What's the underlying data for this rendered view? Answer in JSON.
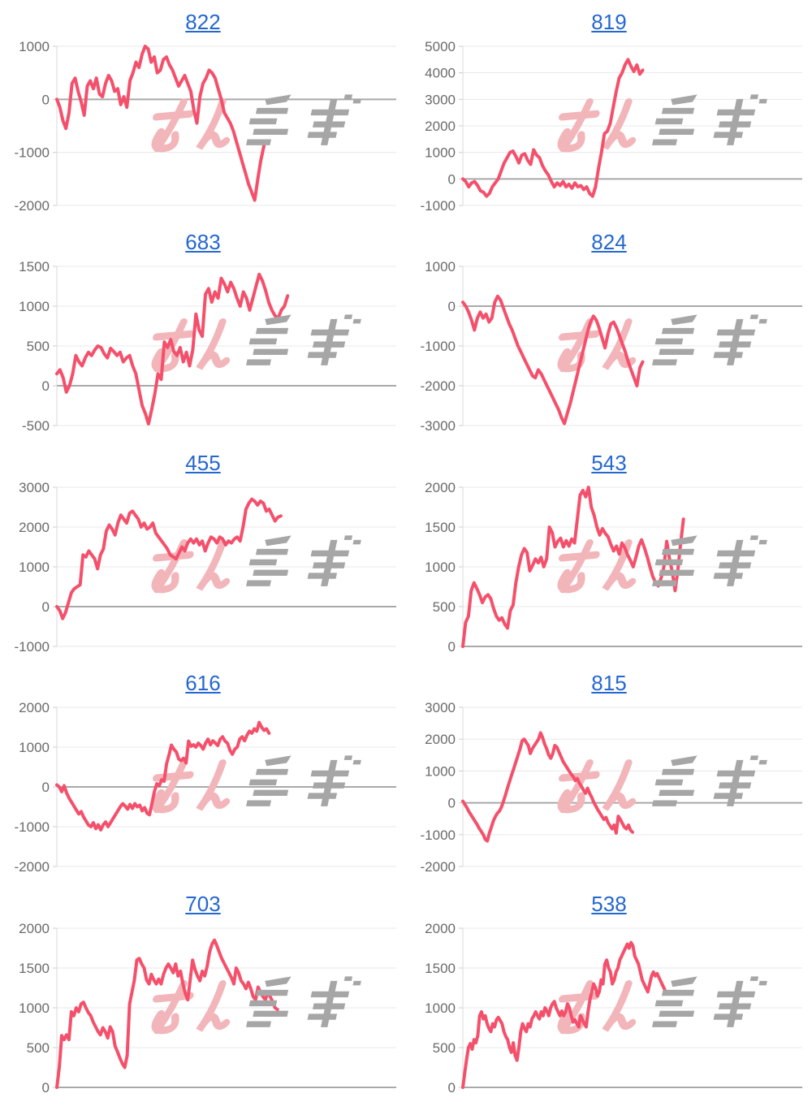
{
  "colors": {
    "line": "#f5506b",
    "link_blue": "#2467d0",
    "axis_text": "#6b6b6b",
    "grid": "#e8e8e8",
    "zero_line": "#a9a9a9",
    "axis_line": "#d9d9d9",
    "tick_mark": "#cccccc",
    "watermark_pink": "#f2b5ba",
    "watermark_gray": "#a6a6a6",
    "background": "#ffffff"
  },
  "watermark": {
    "pink_text": "みん",
    "gray_text": "レポ"
  },
  "chart_data": [
    {
      "type": "line",
      "title": "822",
      "xlabel": "",
      "ylabel": "",
      "legend": "none",
      "grid": true,
      "ylim": [
        -2000,
        1000
      ],
      "yticks": [
        1000,
        0,
        -1000,
        -2000
      ],
      "span": 0.61,
      "values": [
        0,
        -150,
        -400,
        -550,
        -250,
        300,
        400,
        150,
        -50,
        -300,
        250,
        350,
        200,
        400,
        100,
        50,
        300,
        450,
        350,
        150,
        200,
        -100,
        50,
        -150,
        350,
        500,
        700,
        600,
        850,
        1000,
        950,
        700,
        800,
        500,
        550,
        750,
        800,
        650,
        550,
        400,
        250,
        350,
        450,
        300,
        150,
        -200,
        -450,
        50,
        300,
        400,
        550,
        500,
        400,
        200,
        0,
        -250,
        -350,
        -450,
        -600,
        -800,
        -1000,
        -1200,
        -1400,
        -1600,
        -1750,
        -1900,
        -1500,
        -1150,
        -880
      ]
    },
    {
      "type": "line",
      "title": "819",
      "xlabel": "",
      "ylabel": "",
      "legend": "none",
      "grid": true,
      "ylim": [
        -1000,
        5000
      ],
      "yticks": [
        5000,
        4000,
        3000,
        2000,
        1000,
        0,
        -1000
      ],
      "span": 0.53,
      "values": [
        0,
        -100,
        -300,
        -150,
        -100,
        -250,
        -450,
        -500,
        -650,
        -550,
        -300,
        -150,
        0,
        300,
        600,
        800,
        1000,
        1050,
        850,
        600,
        900,
        950,
        700,
        550,
        1100,
        900,
        800,
        500,
        300,
        150,
        -100,
        -300,
        -150,
        -250,
        -100,
        -300,
        -200,
        -350,
        -150,
        -300,
        -250,
        -400,
        -300,
        -550,
        -650,
        -300,
        400,
        1000,
        1700,
        1800,
        2100,
        2700,
        3300,
        3800,
        4000,
        4300,
        4500,
        4250,
        4050,
        4300,
        3950,
        4100
      ]
    },
    {
      "type": "line",
      "title": "683",
      "xlabel": "",
      "ylabel": "",
      "legend": "none",
      "grid": true,
      "ylim": [
        -500,
        1500
      ],
      "yticks": [
        1500,
        1000,
        500,
        0,
        -500
      ],
      "span": 0.68,
      "values": [
        150,
        200,
        100,
        -80,
        0,
        150,
        380,
        300,
        250,
        350,
        420,
        380,
        450,
        500,
        480,
        400,
        350,
        470,
        430,
        380,
        420,
        300,
        350,
        380,
        250,
        150,
        -50,
        -250,
        -350,
        -480,
        -300,
        -100,
        150,
        80,
        550,
        480,
        580,
        430,
        380,
        480,
        300,
        420,
        250,
        450,
        900,
        700,
        620,
        1150,
        1220,
        1050,
        1180,
        1100,
        1350,
        1280,
        1180,
        1300,
        1220,
        1100,
        1000,
        1180,
        1100,
        950,
        1100,
        1250,
        1400,
        1320,
        1200,
        1050,
        950,
        880,
        850,
        950,
        1000,
        1130
      ]
    },
    {
      "type": "line",
      "title": "824",
      "xlabel": "",
      "ylabel": "",
      "legend": "none",
      "grid": true,
      "ylim": [
        -3000,
        1000
      ],
      "yticks": [
        1000,
        0,
        -1000,
        -2000,
        -3000
      ],
      "span": 0.53,
      "values": [
        100,
        0,
        -150,
        -350,
        -600,
        -300,
        -150,
        -300,
        -200,
        -400,
        -300,
        100,
        250,
        150,
        -50,
        -250,
        -450,
        -600,
        -800,
        -1000,
        -1150,
        -1300,
        -1450,
        -1600,
        -1750,
        -1800,
        -1600,
        -1700,
        -1850,
        -2000,
        -2150,
        -2300,
        -2450,
        -2600,
        -2800,
        -2950,
        -2700,
        -2450,
        -2150,
        -1850,
        -1550,
        -1250,
        -950,
        -650,
        -400,
        -250,
        -350,
        -550,
        -800,
        -1050,
        -700,
        -450,
        -400,
        -550,
        -750,
        -950,
        -1150,
        -1400,
        -1600,
        -1800,
        -2000,
        -1550,
        -1400
      ]
    },
    {
      "type": "line",
      "title": "455",
      "xlabel": "",
      "ylabel": "",
      "legend": "none",
      "grid": true,
      "ylim": [
        -1000,
        3000
      ],
      "yticks": [
        3000,
        2000,
        1000,
        0,
        -1000
      ],
      "span": 0.66,
      "values": [
        0,
        -100,
        -300,
        -150,
        100,
        350,
        450,
        500,
        550,
        1300,
        1250,
        1400,
        1300,
        1200,
        950,
        1300,
        1450,
        1900,
        2050,
        1950,
        1800,
        2100,
        2300,
        2200,
        2100,
        2350,
        2400,
        2300,
        2200,
        2000,
        2100,
        1950,
        2000,
        2100,
        1850,
        1750,
        1650,
        1550,
        1450,
        1300,
        1250,
        1200,
        1350,
        1500,
        1400,
        1600,
        1700,
        1600,
        1700,
        1550,
        1650,
        1400,
        1600,
        1750,
        1700,
        1600,
        1750,
        1700,
        1550,
        1650,
        1600,
        1700,
        1750,
        1650,
        2000,
        2450,
        2600,
        2700,
        2650,
        2550,
        2650,
        2600,
        2400,
        2450,
        2300,
        2150,
        2250,
        2280
      ]
    },
    {
      "type": "line",
      "title": "543",
      "xlabel": "",
      "ylabel": "",
      "legend": "none",
      "grid": true,
      "ylim": [
        0,
        2000
      ],
      "yticks": [
        2000,
        1500,
        1000,
        500,
        0
      ],
      "span": 0.65,
      "values": [
        0,
        300,
        380,
        700,
        800,
        730,
        650,
        550,
        620,
        650,
        600,
        480,
        380,
        330,
        360,
        280,
        230,
        450,
        520,
        800,
        1000,
        1150,
        1230,
        1180,
        950,
        1020,
        1100,
        1050,
        1120,
        1000,
        1100,
        1500,
        1430,
        1250,
        1320,
        1360,
        1250,
        1330,
        1260,
        1350,
        1300,
        1600,
        1900,
        1960,
        1880,
        2000,
        1750,
        1650,
        1500,
        1400,
        1480,
        1420,
        1380,
        1280,
        1200,
        1260,
        1160,
        1300,
        1240,
        1150,
        1080,
        1000,
        1120,
        1260,
        1340,
        1240,
        1130,
        1000,
        880,
        800,
        760,
        860,
        1000,
        1320,
        1100,
        940,
        700,
        960,
        1300,
        1600
      ]
    },
    {
      "type": "line",
      "title": "616",
      "xlabel": "",
      "ylabel": "",
      "legend": "none",
      "grid": true,
      "ylim": [
        -2000,
        2000
      ],
      "yticks": [
        2000,
        1000,
        0,
        -1000,
        -2000
      ],
      "span": 0.625,
      "values": [
        50,
        0,
        -120,
        30,
        -150,
        -280,
        -380,
        -480,
        -580,
        -680,
        -620,
        -760,
        -860,
        -960,
        -1000,
        -900,
        -1050,
        -950,
        -1080,
        -950,
        -880,
        -1000,
        -900,
        -800,
        -700,
        -600,
        -500,
        -420,
        -480,
        -560,
        -440,
        -540,
        -420,
        -500,
        -460,
        -600,
        -520,
        -660,
        -700,
        -420,
        -120,
        80,
        30,
        180,
        140,
        580,
        800,
        1050,
        950,
        880,
        700,
        660,
        720,
        600,
        1150,
        1020,
        1060,
        1000,
        1100,
        1040,
        950,
        1100,
        1200,
        1060,
        1160,
        1100,
        1040,
        1200,
        1260,
        1150,
        1100,
        920,
        820,
        950,
        1000,
        1200,
        1260,
        1160,
        1300,
        1400,
        1350,
        1460,
        1400,
        1620,
        1500,
        1420,
        1460,
        1350
      ]
    },
    {
      "type": "line",
      "title": "815",
      "xlabel": "",
      "ylabel": "",
      "legend": "none",
      "grid": true,
      "ylim": [
        -2000,
        3000
      ],
      "yticks": [
        3000,
        2000,
        1000,
        0,
        -1000,
        -2000
      ],
      "span": 0.5,
      "values": [
        50,
        -50,
        -150,
        -280,
        -380,
        -480,
        -580,
        -680,
        -800,
        -900,
        -1000,
        -1150,
        -1200,
        -950,
        -750,
        -550,
        -420,
        -320,
        -250,
        -120,
        80,
        280,
        500,
        700,
        900,
        1100,
        1300,
        1500,
        1700,
        1950,
        2000,
        1900,
        1800,
        1550,
        1700,
        1800,
        1900,
        2000,
        2200,
        2050,
        1850,
        1700,
        1500,
        1400,
        1550,
        1800,
        1750,
        1600,
        1450,
        1300,
        1200,
        1100,
        1000,
        900,
        820,
        700,
        760,
        620,
        520,
        400,
        300,
        460,
        300,
        180,
        20,
        -100,
        -220,
        -320,
        -420,
        -520,
        -460,
        -620,
        -720,
        -820,
        -700,
        -950,
        -420,
        -520,
        -640,
        -760,
        -820,
        -700,
        -860,
        -920
      ]
    },
    {
      "type": "line",
      "title": "703",
      "xlabel": "",
      "ylabel": "",
      "legend": "none",
      "grid": true,
      "ylim": [
        0,
        2000
      ],
      "yticks": [
        2000,
        1500,
        1000,
        500,
        0
      ],
      "span": 0.65,
      "values": [
        0,
        250,
        650,
        600,
        660,
        600,
        950,
        900,
        1000,
        950,
        1050,
        1070,
        1000,
        940,
        900,
        820,
        760,
        700,
        660,
        750,
        700,
        620,
        760,
        700,
        520,
        450,
        370,
        300,
        250,
        400,
        1050,
        1200,
        1350,
        1600,
        1620,
        1550,
        1500,
        1350,
        1300,
        1420,
        1350,
        1300,
        1360,
        1300,
        1420,
        1500,
        1550,
        1500,
        1440,
        1550,
        1400,
        1460,
        1300,
        1180,
        1100,
        1350,
        1600,
        1480,
        1400,
        1340,
        1460,
        1400,
        1520,
        1700,
        1800,
        1850,
        1780,
        1700,
        1620,
        1560,
        1500,
        1440,
        1380,
        1300,
        1500,
        1440,
        1340,
        1300,
        1240,
        1320,
        1240,
        1140,
        1100,
        1260,
        1200,
        1140,
        1100,
        1200,
        1140,
        1080,
        1000,
        980
      ]
    },
    {
      "type": "line",
      "title": "538",
      "xlabel": "",
      "ylabel": "",
      "legend": "none",
      "grid": true,
      "ylim": [
        0,
        2000
      ],
      "yticks": [
        2000,
        1500,
        1000,
        500,
        0
      ],
      "span": 0.6,
      "values": [
        0,
        180,
        350,
        500,
        550,
        480,
        600,
        560,
        650,
        900,
        950,
        860,
        900,
        800,
        740,
        700,
        800,
        760,
        850,
        880,
        840,
        800,
        700,
        640,
        600,
        500,
        440,
        560,
        400,
        340,
        500,
        700,
        800,
        740,
        700,
        800,
        760,
        860,
        900,
        950,
        900,
        860,
        950,
        900,
        1000,
        960,
        900,
        1000,
        1050,
        1080,
        1000,
        950,
        900,
        960,
        900,
        950,
        1050,
        1000,
        900,
        820,
        850,
        800,
        760,
        900,
        850,
        800,
        760,
        950,
        1100,
        1200,
        1300,
        1250,
        1150,
        1200,
        1350,
        1300,
        1550,
        1600,
        1500,
        1450,
        1300,
        1350,
        1450,
        1500,
        1600,
        1650,
        1700,
        1750,
        1800,
        1750,
        1820,
        1780,
        1650,
        1600,
        1550,
        1450,
        1350,
        1300,
        1250,
        1200,
        1300,
        1400,
        1450,
        1400,
        1430,
        1380,
        1330,
        1280,
        1230,
        1180
      ]
    }
  ]
}
